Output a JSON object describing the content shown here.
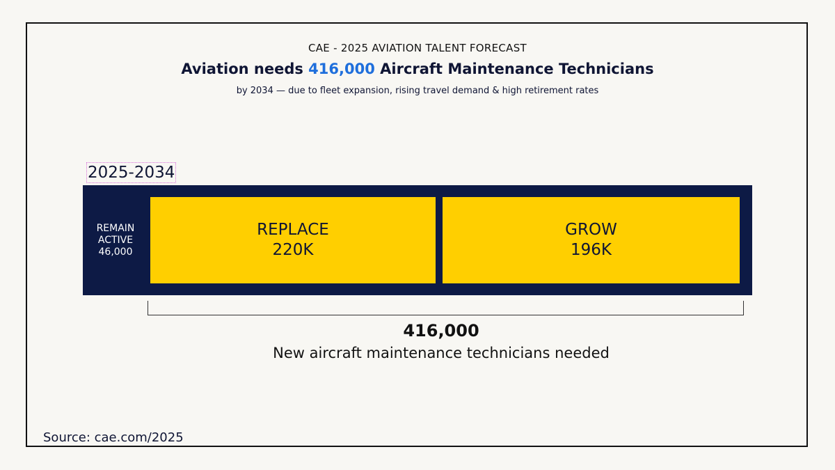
{
  "header": {
    "eyebrow": "CAE - 2025 AVIATION TALENT FORECAST",
    "headline_before": "Aviation needs ",
    "headline_highlight": "416,000",
    "headline_after": " Aircraft Maintenance Technicians",
    "subtitle": "by 2034 — due to fleet expansion, rising travel demand & high retirement rates"
  },
  "chart_data": {
    "type": "bar",
    "orientation": "horizontal-stacked",
    "category": "2025-2034",
    "segments": [
      {
        "label_line1": "REMAIN",
        "label_line2": "ACTIVE",
        "value_label": "46,000",
        "value": 46000
      },
      {
        "label_line1": "REPLACE",
        "value_label": "220K",
        "value": 220000
      },
      {
        "label_line1": "GROW",
        "value_label": "196K",
        "value": 196000
      }
    ],
    "total_value": "416,000",
    "total_label": "New aircraft maintenance technicians needed"
  },
  "source": "Source: cae.com/2025",
  "colors": {
    "navy": "#0d1a45",
    "segment_yellow": "#ffcf00",
    "highlight_blue": "#1f6fdc",
    "background": "#f8f7f3"
  }
}
